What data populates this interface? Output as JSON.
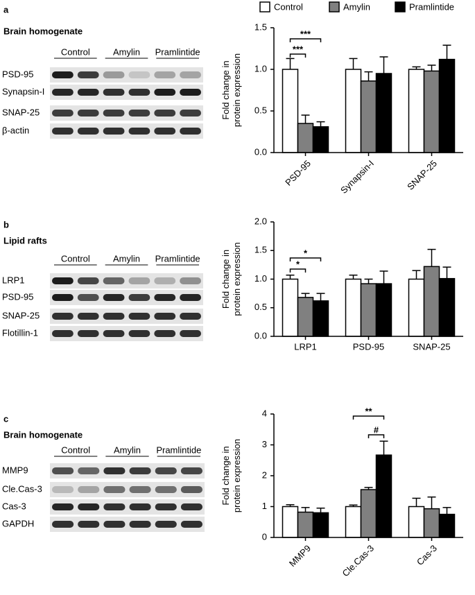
{
  "blots": [
    {
      "letter": "a",
      "title": "Brain homogenate",
      "groups": [
        "Control",
        "Amylin",
        "Pramlintide"
      ],
      "rows": [
        "PSD-95",
        "Synapsin-I",
        "SNAP-25",
        "β-actin"
      ]
    },
    {
      "letter": "b",
      "title": "Lipid rafts",
      "groups": [
        "Control",
        "Amylin",
        "Pramlintide"
      ],
      "rows": [
        "LRP1",
        "PSD-95",
        "SNAP-25",
        "Flotillin-1"
      ]
    },
    {
      "letter": "c",
      "title": "Brain homogenate",
      "groups": [
        "Control",
        "Amylin",
        "Pramlintide"
      ],
      "rows": [
        "MMP9",
        "Cle.Cas-3",
        "Cas-3",
        "GAPDH"
      ]
    }
  ],
  "chart_data": [
    {
      "type": "bar",
      "y_label": "Fold change in protein expression",
      "categories": [
        "PSD-95",
        "Synapsin-I",
        "SNAP-25"
      ],
      "series": [
        {
          "name": "Control",
          "color": "#ffffff",
          "values": [
            1.0,
            1.0,
            1.0
          ],
          "errors": [
            0.13,
            0.13,
            0.03
          ]
        },
        {
          "name": "Amylin",
          "color": "#808080",
          "values": [
            0.35,
            0.86,
            0.98
          ],
          "errors": [
            0.1,
            0.11,
            0.07
          ]
        },
        {
          "name": "Pramlintide",
          "color": "#000000",
          "values": [
            0.31,
            0.95,
            1.12
          ],
          "errors": [
            0.06,
            0.2,
            0.17
          ]
        }
      ],
      "ylim": [
        0,
        1.5
      ],
      "yticks": [
        {
          "value": 0,
          "label": "0.0"
        },
        0.5,
        {
          "value": 1,
          "label": "1.0"
        },
        1.5
      ],
      "annotations": [
        "***",
        "***"
      ],
      "legend": "top"
    },
    {
      "type": "bar",
      "y_label": "Fold change in protein expression",
      "categories": [
        "LRP1",
        "PSD-95",
        "SNAP-25"
      ],
      "series": [
        {
          "name": "Control",
          "color": "#ffffff",
          "values": [
            1.0,
            1.0,
            1.0
          ],
          "errors": [
            0.07,
            0.07,
            0.15
          ]
        },
        {
          "name": "Amylin",
          "color": "#808080",
          "values": [
            0.68,
            0.92,
            1.22
          ],
          "errors": [
            0.07,
            0.08,
            0.3
          ]
        },
        {
          "name": "Pramlintide",
          "color": "#000000",
          "values": [
            0.62,
            0.92,
            1.01
          ],
          "errors": [
            0.13,
            0.22,
            0.2
          ]
        }
      ],
      "ylim": [
        0,
        2
      ],
      "yticks": [
        {
          "value": 0,
          "label": "0.0"
        },
        0.5,
        {
          "value": 1,
          "label": "1.0"
        },
        1.5,
        {
          "value": 2,
          "label": "2.0"
        }
      ],
      "annotations": [
        "*",
        "*"
      ]
    },
    {
      "type": "bar",
      "y_label": "Fold change in protein expression",
      "categories": [
        "MMP9",
        "Cle.Cas-3",
        "Cas-3"
      ],
      "series": [
        {
          "name": "Control",
          "color": "#ffffff",
          "values": [
            1.0,
            1.0,
            1.0
          ],
          "errors": [
            0.06,
            0.05,
            0.27
          ]
        },
        {
          "name": "Amylin",
          "color": "#808080",
          "values": [
            0.82,
            1.55,
            0.93
          ],
          "errors": [
            0.15,
            0.07,
            0.38
          ]
        },
        {
          "name": "Pramlintide",
          "color": "#000000",
          "values": [
            0.8,
            2.67,
            0.75
          ],
          "errors": [
            0.15,
            0.45,
            0.22
          ]
        }
      ],
      "ylim": [
        0,
        4
      ],
      "yticks": [
        0,
        1,
        2,
        3,
        4
      ],
      "annotations": [
        "**",
        "#"
      ]
    }
  ]
}
